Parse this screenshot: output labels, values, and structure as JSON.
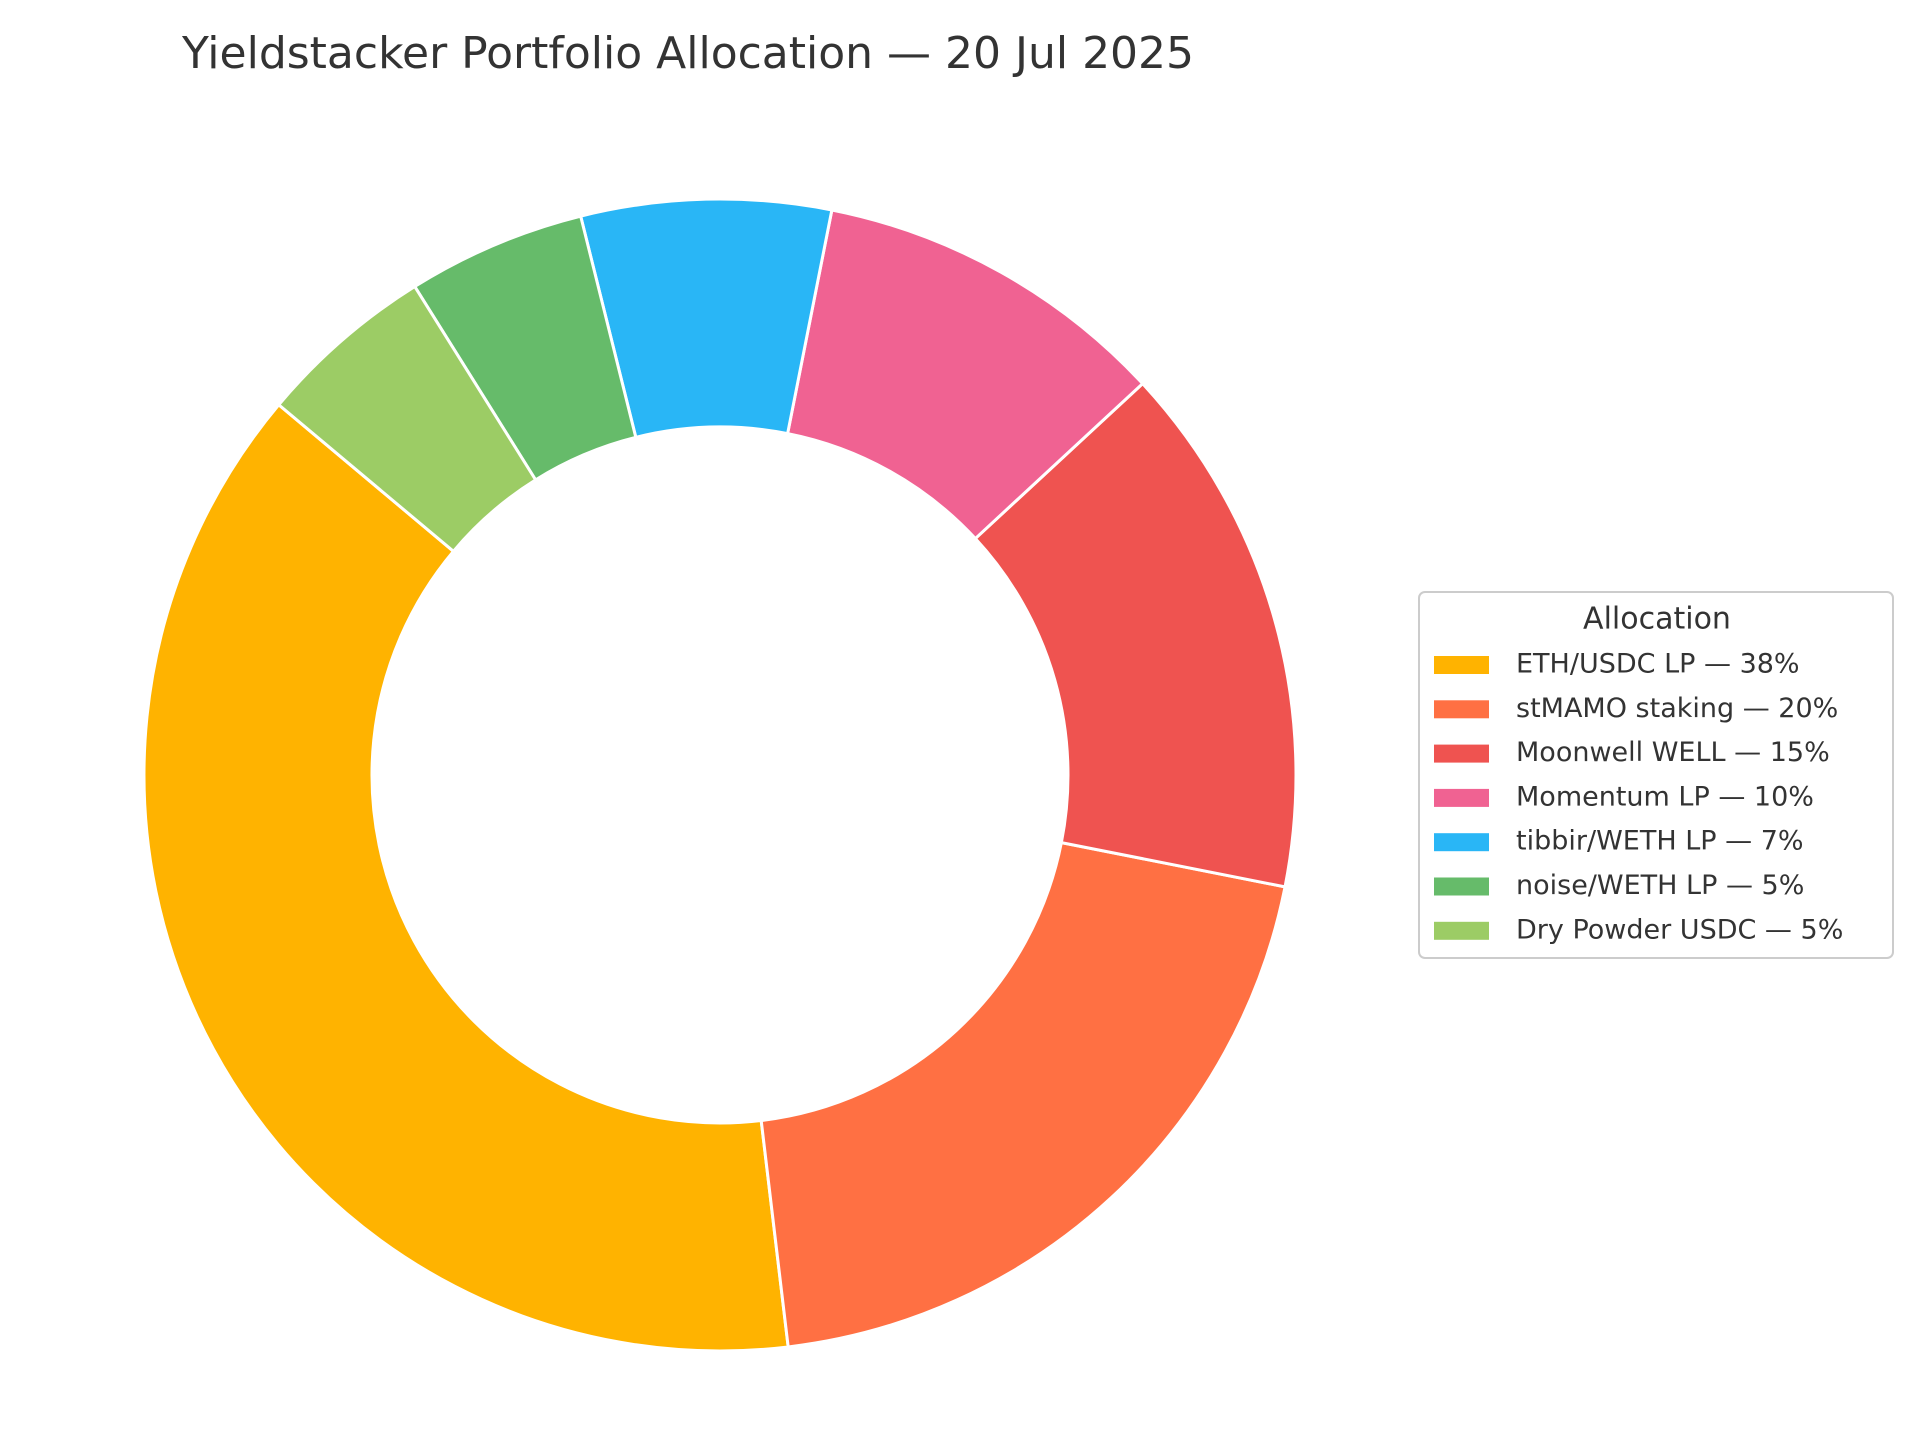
{
  "chart_data": {
    "type": "donut",
    "title": "Yieldstacker Portfolio Allocation — 20 Jul 2025",
    "legend_title": "Allocation",
    "legend": "right",
    "categories": [
      "ETH/USDC LP — 38%",
      "stMAMO staking — 20%",
      "Moonwell WELL — 15%",
      "Momentum LP — 10%",
      "tibbir/WETH LP — 7%",
      "noise/WETH LP — 5%",
      "Dry Powder USDC — 5%"
    ],
    "values": [
      38,
      20,
      15,
      10,
      7,
      5,
      5
    ],
    "colors": [
      "#FFB300",
      "#FF7043",
      "#EF5350",
      "#F06292",
      "#29B6F6",
      "#66BB6A",
      "#9CCC65"
    ]
  }
}
